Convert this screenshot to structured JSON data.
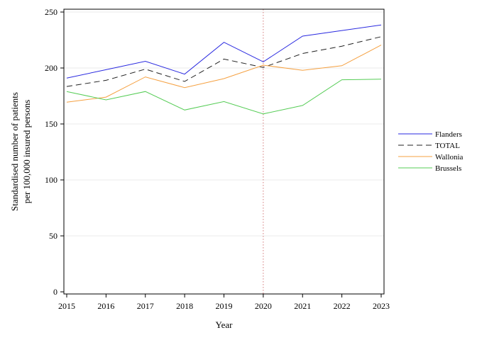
{
  "chart_data": {
    "type": "line",
    "xlabel": "Year",
    "ylabel_lines": [
      "Standardised number of patients",
      "per 100,000 insured persons"
    ],
    "x": [
      2015,
      2016,
      2017,
      2018,
      2019,
      2020,
      2021,
      2022,
      2023
    ],
    "x_tick_labels": [
      "2015",
      "2016",
      "2017",
      "2018",
      "2019",
      "2020",
      "2021",
      "2022",
      "2023"
    ],
    "xlim": [
      2015,
      2023
    ],
    "ylim": [
      0,
      250
    ],
    "y_ticks": [
      0,
      50,
      100,
      150,
      200,
      250
    ],
    "y_tick_labels": [
      "0",
      "50",
      "100",
      "150",
      "200",
      "250"
    ],
    "grid": "horizontal",
    "legend_position": "right",
    "reference_line": {
      "x": 2020,
      "style": "dotted",
      "color": "#d47a7a"
    },
    "series": [
      {
        "name": "Flanders",
        "color": "#2a2ae0",
        "dash": "solid",
        "values": [
          191,
          198.5,
          206,
          194.5,
          223,
          205.5,
          228.5,
          233.5,
          238.5
        ]
      },
      {
        "name": "TOTAL",
        "color": "#222222",
        "dash": "dashed",
        "values": [
          183.5,
          189,
          199,
          188,
          208,
          200.5,
          213,
          219.5,
          228
        ]
      },
      {
        "name": "Wallonia",
        "color": "#f5a040",
        "dash": "solid",
        "values": [
          169.5,
          174,
          192,
          182.5,
          190.5,
          202.5,
          198,
          202,
          220.5
        ]
      },
      {
        "name": "Brussels",
        "color": "#55cc55",
        "dash": "solid",
        "values": [
          179,
          171.5,
          179,
          162.5,
          170,
          159,
          166.5,
          189.5,
          190
        ]
      }
    ]
  }
}
